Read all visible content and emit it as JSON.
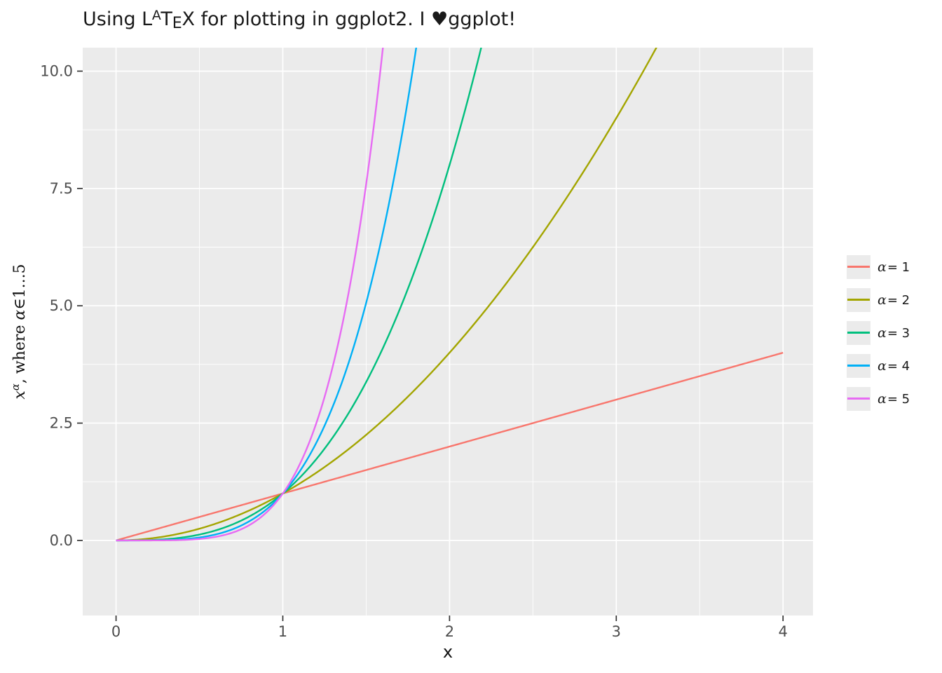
{
  "title": {
    "pre": "Using L",
    "sup_a": "A",
    "t": "T",
    "sub_e": "E",
    "x": "X",
    "post": " for plotting in ggplot2. I ♥ggplot!"
  },
  "axes": {
    "x_label": "x",
    "y_label": {
      "var": "x",
      "sup": "α",
      "mid": ", where ",
      "sym": "α",
      "elem": "∈",
      "range": "1...5"
    }
  },
  "chart_data": {
    "type": "line",
    "title": "Using LATEX for plotting in ggplot2. I ♥ggplot!",
    "xlabel": "x",
    "ylabel": "x^α, where α ∈ 1...5",
    "formula": "y = x^exponent",
    "x_range": [
      0,
      4
    ],
    "xlim": [
      -0.2,
      4.18
    ],
    "ylim": [
      -1.6,
      10.5
    ],
    "x_ticks": [
      0,
      1,
      2,
      3,
      4
    ],
    "x_tick_labels": [
      "0",
      "1",
      "2",
      "3",
      "4"
    ],
    "y_ticks": [
      0,
      2.5,
      5,
      7.5,
      10
    ],
    "y_tick_labels": [
      "0.0",
      "2.5",
      "5.0",
      "7.5",
      "10.0"
    ],
    "x_minor": [
      0.5,
      1.5,
      2.5,
      3.5
    ],
    "y_minor": [
      1.25,
      3.75,
      6.25,
      8.75
    ],
    "grid": true,
    "panel_bg": "#EBEBEB",
    "grid_color": "#FFFFFF",
    "tick_color": "#333333",
    "tick_label_color": "#4D4D4D",
    "legend_position": "right",
    "legend_key_bg": "#EBEBEB",
    "series": [
      {
        "name": "alpha-1",
        "sym": "α",
        "label": "= 1",
        "exponent": 1,
        "color": "#F8766D"
      },
      {
        "name": "alpha-2",
        "sym": "α",
        "label": "= 2",
        "exponent": 2,
        "color": "#A3A500"
      },
      {
        "name": "alpha-3",
        "sym": "α",
        "label": "= 3",
        "exponent": 3,
        "color": "#00BF7D"
      },
      {
        "name": "alpha-4",
        "sym": "α",
        "label": "= 4",
        "exponent": 4,
        "color": "#00B0F6"
      },
      {
        "name": "alpha-5",
        "sym": "α",
        "label": "= 5",
        "exponent": 5,
        "color": "#E76BF3"
      }
    ]
  }
}
